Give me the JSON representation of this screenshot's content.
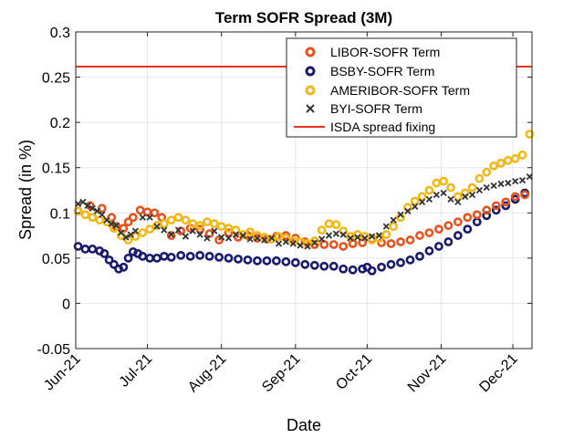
{
  "chart_data": {
    "type": "scatter",
    "title": "Term SOFR Spread (3M)",
    "xlabel": "Date",
    "ylabel": "Spread (in %)",
    "ylim": [
      -0.05,
      0.3
    ],
    "yticks": [
      "-0.05",
      "0",
      "0.05",
      "0.1",
      "0.15",
      "0.2",
      "0.25",
      "0.3"
    ],
    "yticks_values": [
      -0.05,
      0,
      0.05,
      0.1,
      0.15,
      0.2,
      0.25,
      0.3
    ],
    "xlim_days": [
      0,
      191
    ],
    "xticks": [
      "Jun-21",
      "Jul-21",
      "Aug-21",
      "Sep-21",
      "Oct-21",
      "Nov-21",
      "Dec-21"
    ],
    "xticks_days": [
      0,
      30,
      61,
      92,
      122,
      153,
      183
    ],
    "grid": true,
    "legend_position": "top-right",
    "series": [
      {
        "name": "LIBOR-SOFR Term",
        "marker": "circle",
        "color": "#e8531d",
        "x": [
          1,
          6,
          11,
          15,
          17,
          20,
          22,
          24,
          27,
          30,
          33,
          36,
          40,
          44,
          48,
          52,
          56,
          60,
          64,
          68,
          72,
          76,
          80,
          84,
          88,
          92,
          96,
          100,
          104,
          108,
          112,
          116,
          120,
          124,
          128,
          132,
          136,
          140,
          144,
          148,
          152,
          156,
          160,
          164,
          168,
          172,
          176,
          180,
          184,
          188
        ],
        "y": [
          0.102,
          0.108,
          0.105,
          0.095,
          0.085,
          0.083,
          0.09,
          0.095,
          0.103,
          0.101,
          0.1,
          0.095,
          0.075,
          0.08,
          0.083,
          0.082,
          0.077,
          0.07,
          0.078,
          0.073,
          0.075,
          0.072,
          0.071,
          0.074,
          0.075,
          0.072,
          0.068,
          0.065,
          0.065,
          0.065,
          0.063,
          0.066,
          0.067,
          0.071,
          0.067,
          0.066,
          0.068,
          0.07,
          0.075,
          0.078,
          0.082,
          0.086,
          0.09,
          0.095,
          0.098,
          0.103,
          0.108,
          0.112,
          0.118,
          0.12
        ]
      },
      {
        "name": "BSBY-SOFR Term",
        "marker": "circle",
        "color": "#1a1a6e",
        "x": [
          1,
          4,
          7,
          10,
          12,
          14,
          16,
          18,
          20,
          22,
          24,
          26,
          28,
          31,
          34,
          37,
          40,
          44,
          48,
          52,
          56,
          60,
          64,
          68,
          72,
          76,
          80,
          84,
          88,
          92,
          96,
          100,
          104,
          108,
          112,
          116,
          120,
          122,
          124,
          128,
          132,
          136,
          140,
          144,
          148,
          152,
          156,
          160,
          164,
          168,
          172,
          176,
          180,
          184,
          188
        ],
        "y": [
          0.063,
          0.06,
          0.06,
          0.058,
          0.055,
          0.048,
          0.043,
          0.038,
          0.04,
          0.05,
          0.057,
          0.055,
          0.052,
          0.05,
          0.05,
          0.052,
          0.051,
          0.053,
          0.052,
          0.053,
          0.052,
          0.051,
          0.05,
          0.049,
          0.048,
          0.047,
          0.047,
          0.047,
          0.046,
          0.045,
          0.043,
          0.042,
          0.041,
          0.041,
          0.038,
          0.037,
          0.038,
          0.04,
          0.036,
          0.04,
          0.043,
          0.045,
          0.048,
          0.052,
          0.058,
          0.063,
          0.068,
          0.075,
          0.082,
          0.09,
          0.097,
          0.103,
          0.108,
          0.115,
          0.122
        ]
      },
      {
        "name": "AMERIBOR-SOFR Term",
        "marker": "circle",
        "color": "#f0b918",
        "x": [
          1,
          4,
          7,
          10,
          13,
          16,
          19,
          22,
          25,
          28,
          31,
          34,
          37,
          40,
          43,
          46,
          49,
          52,
          55,
          58,
          61,
          64,
          67,
          70,
          73,
          76,
          79,
          82,
          85,
          88,
          91,
          94,
          97,
          100,
          103,
          106,
          109,
          112,
          115,
          118,
          121,
          124,
          127,
          130,
          133,
          136,
          139,
          142,
          145,
          148,
          151,
          154,
          157,
          160,
          163,
          166,
          169,
          172,
          175,
          178,
          181,
          184,
          187,
          190
        ],
        "y": [
          0.102,
          0.098,
          0.095,
          0.092,
          0.09,
          0.083,
          0.075,
          0.07,
          0.074,
          0.078,
          0.082,
          0.086,
          0.088,
          0.092,
          0.095,
          0.092,
          0.088,
          0.086,
          0.09,
          0.088,
          0.085,
          0.083,
          0.081,
          0.076,
          0.079,
          0.075,
          0.073,
          0.071,
          0.074,
          0.072,
          0.069,
          0.068,
          0.066,
          0.069,
          0.081,
          0.088,
          0.087,
          0.08,
          0.074,
          0.076,
          0.074,
          0.07,
          0.072,
          0.076,
          0.085,
          0.095,
          0.106,
          0.113,
          0.118,
          0.125,
          0.133,
          0.135,
          0.128,
          0.118,
          0.122,
          0.128,
          0.138,
          0.145,
          0.152,
          0.155,
          0.158,
          0.16,
          0.164,
          0.187
        ]
      },
      {
        "name": "BYI-SOFR Term",
        "marker": "x",
        "color": "#333333",
        "x": [
          1,
          3,
          5,
          7,
          9,
          11,
          13,
          15,
          17,
          19,
          21,
          23,
          25,
          28,
          31,
          34,
          37,
          40,
          43,
          46,
          49,
          52,
          55,
          58,
          61,
          64,
          67,
          70,
          73,
          76,
          79,
          82,
          85,
          88,
          91,
          94,
          97,
          100,
          103,
          106,
          109,
          112,
          115,
          118,
          121,
          124,
          127,
          130,
          133,
          136,
          139,
          142,
          145,
          148,
          151,
          154,
          157,
          160,
          163,
          166,
          169,
          172,
          175,
          178,
          181,
          184,
          187,
          190
        ],
        "y": [
          0.11,
          0.112,
          0.108,
          0.105,
          0.102,
          0.098,
          0.092,
          0.088,
          0.086,
          0.078,
          0.073,
          0.076,
          0.08,
          0.095,
          0.095,
          0.085,
          0.081,
          0.076,
          0.081,
          0.074,
          0.08,
          0.076,
          0.072,
          0.08,
          0.073,
          0.072,
          0.076,
          0.075,
          0.071,
          0.072,
          0.07,
          0.072,
          0.066,
          0.068,
          0.066,
          0.064,
          0.063,
          0.067,
          0.071,
          0.075,
          0.077,
          0.076,
          0.072,
          0.073,
          0.072,
          0.074,
          0.075,
          0.085,
          0.092,
          0.098,
          0.102,
          0.107,
          0.112,
          0.115,
          0.12,
          0.122,
          0.115,
          0.112,
          0.118,
          0.12,
          0.125,
          0.128,
          0.13,
          0.132,
          0.133,
          0.135,
          0.136,
          0.14
        ]
      },
      {
        "name": "ISDA spread fixing",
        "marker": "line",
        "color": "#e8321d",
        "y_constant": 0.26161
      }
    ]
  }
}
